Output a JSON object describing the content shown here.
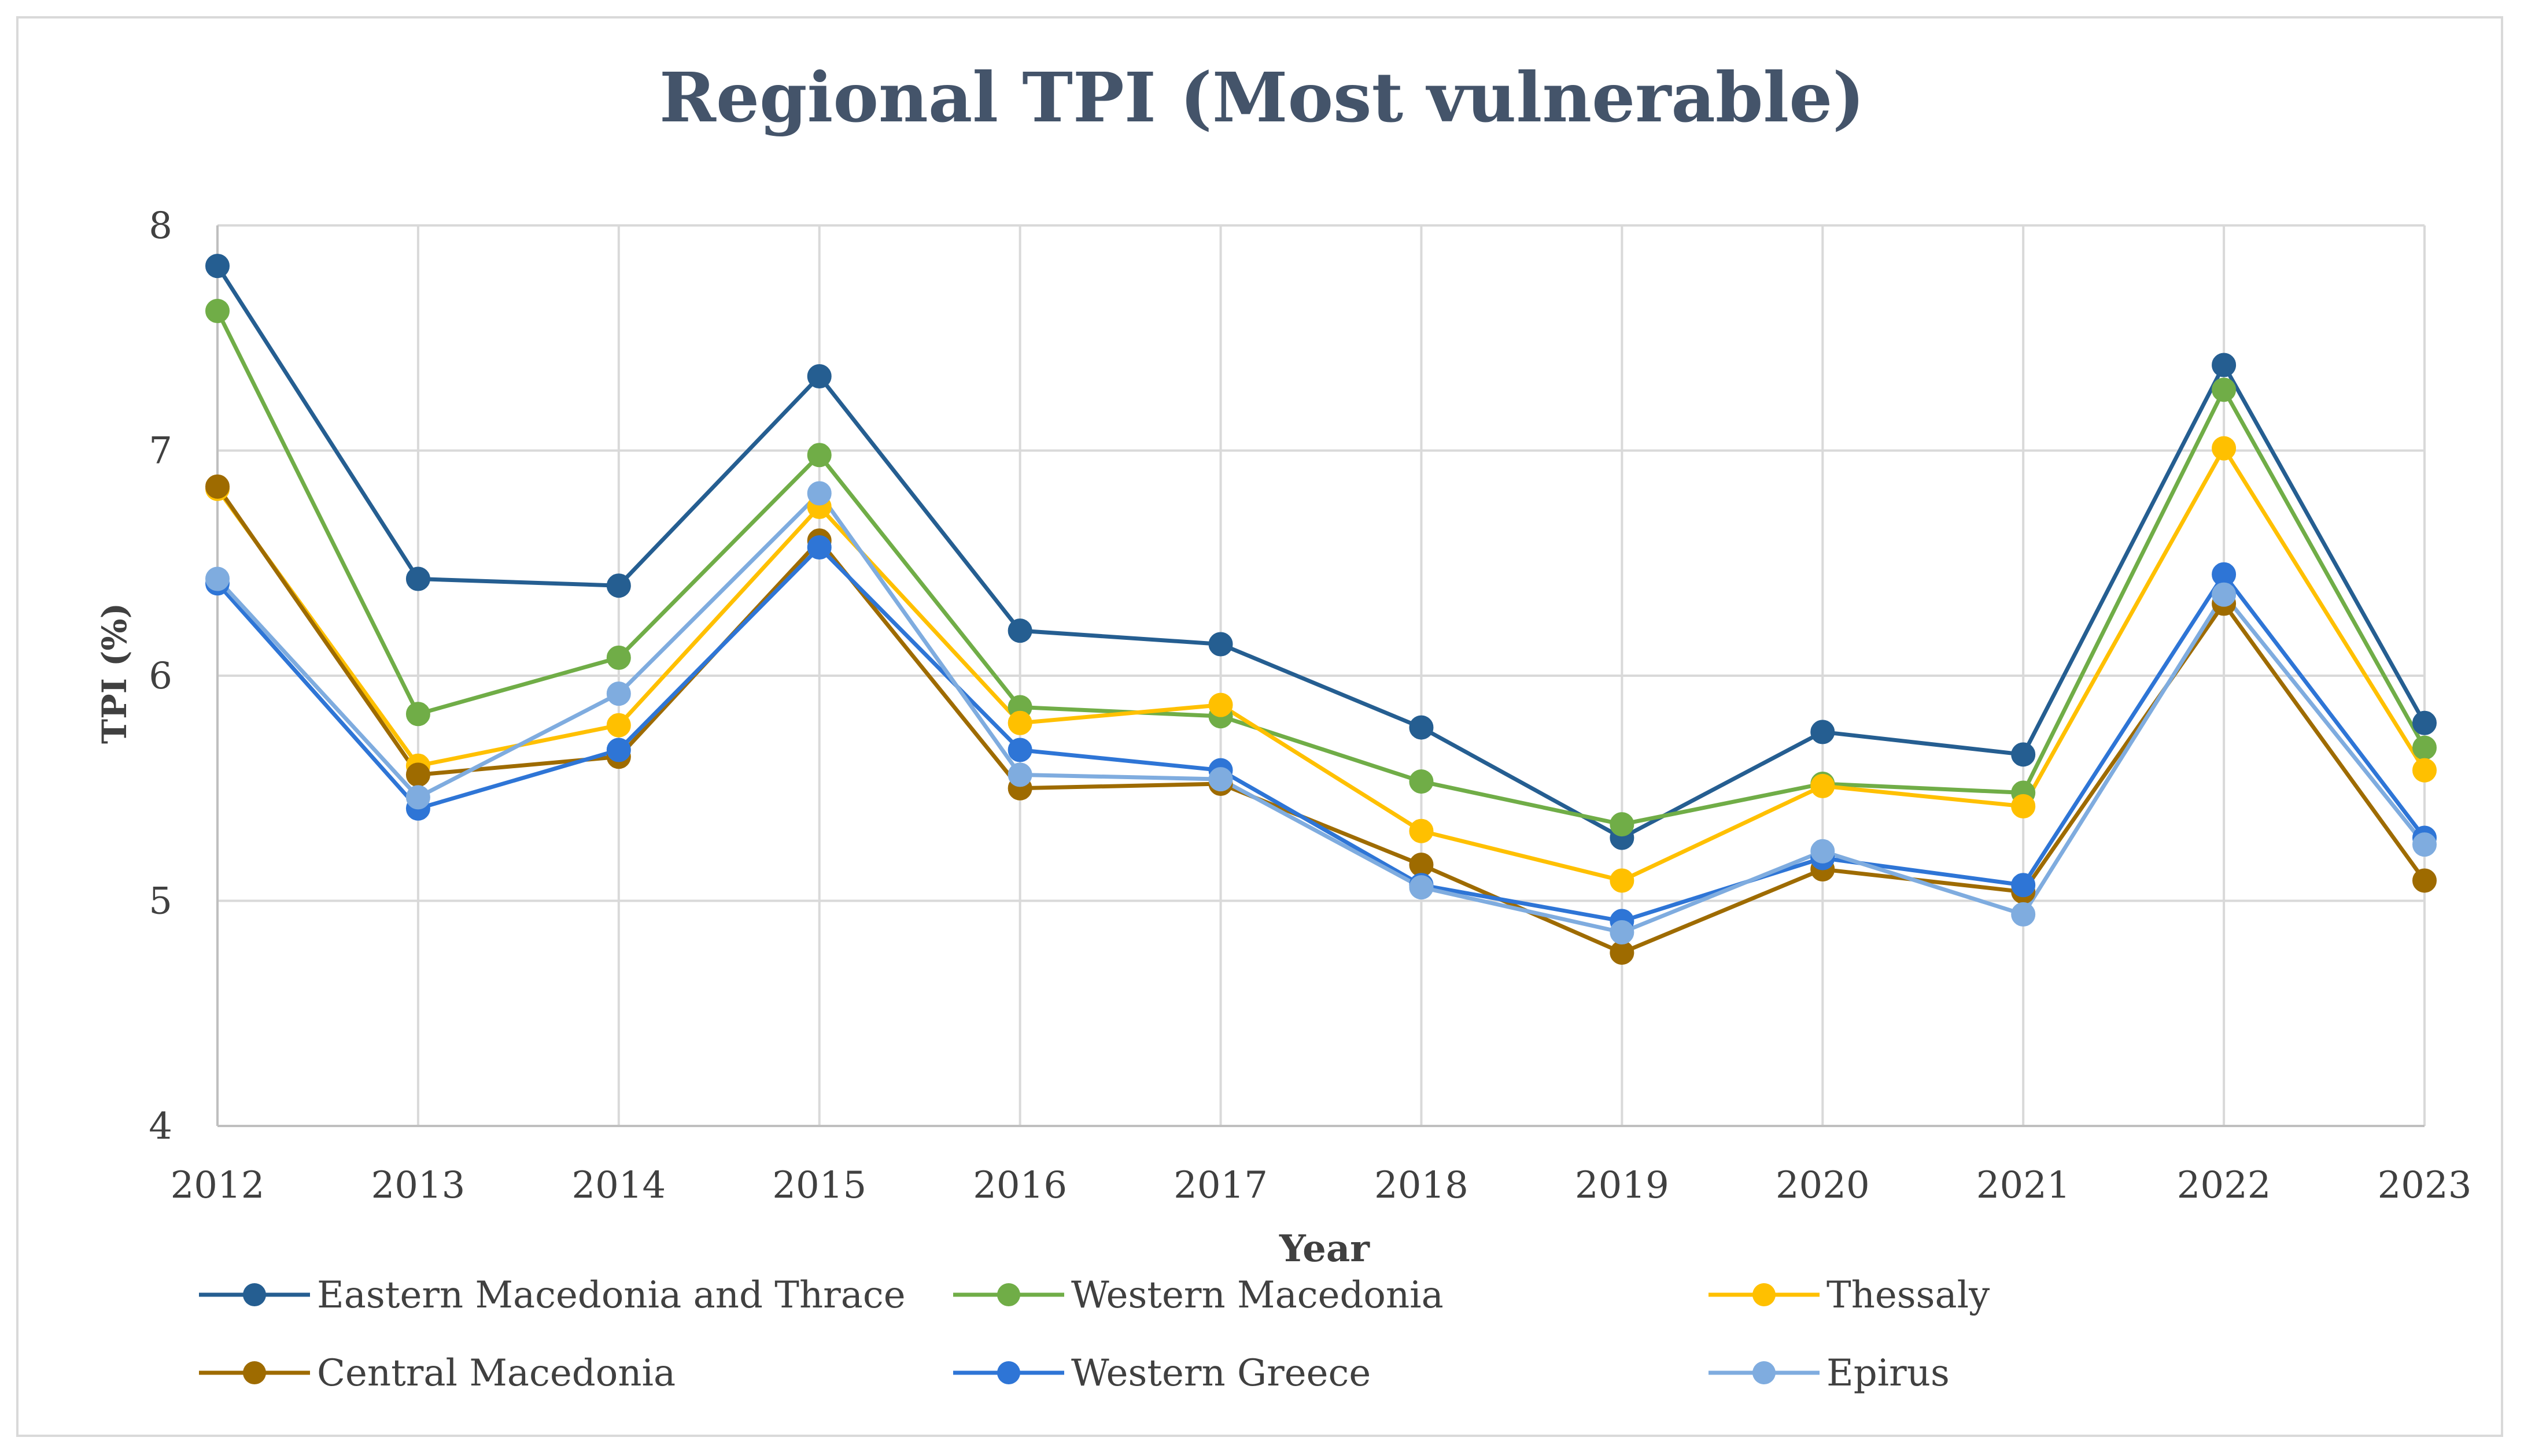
{
  "chart_data": {
    "type": "line",
    "title": "Regional TPI (Most vulnerable)",
    "xlabel": "Year",
    "ylabel": "TPI (%)",
    "x": [
      "2012",
      "2013",
      "2014",
      "2015",
      "2016",
      "2017",
      "2018",
      "2019",
      "2020",
      "2021",
      "2022",
      "2023"
    ],
    "ylim": [
      4,
      8
    ],
    "yticks": [
      "4",
      "5",
      "6",
      "7",
      "8"
    ],
    "grid": true,
    "legend_position": "bottom",
    "series": [
      {
        "name": "Eastern Macedonia and Thrace",
        "color": "#255e91",
        "values": [
          7.82,
          6.43,
          6.4,
          7.33,
          6.2,
          6.14,
          5.77,
          5.28,
          5.75,
          5.65,
          7.38,
          5.79
        ]
      },
      {
        "name": "Western Macedonia",
        "color": "#70ad47",
        "values": [
          7.62,
          5.83,
          6.08,
          6.98,
          5.86,
          5.82,
          5.53,
          5.34,
          5.52,
          5.48,
          7.27,
          5.68
        ]
      },
      {
        "name": "Thessaly",
        "color": "#ffc000",
        "values": [
          6.83,
          5.6,
          5.78,
          6.75,
          5.79,
          5.87,
          5.31,
          5.09,
          5.51,
          5.42,
          7.01,
          5.58
        ]
      },
      {
        "name": "Central Macedonia",
        "color": "#9e6b00",
        "values": [
          6.84,
          5.56,
          5.64,
          6.6,
          5.5,
          5.52,
          5.16,
          4.77,
          5.14,
          5.04,
          6.32,
          5.09
        ]
      },
      {
        "name": "Western Greece",
        "color": "#2e75d6",
        "values": [
          6.41,
          5.41,
          5.67,
          6.57,
          5.67,
          5.58,
          5.07,
          4.91,
          5.19,
          5.07,
          6.45,
          5.28
        ]
      },
      {
        "name": "Epirus",
        "color": "#7facdf",
        "values": [
          6.43,
          5.46,
          5.92,
          6.81,
          5.56,
          5.54,
          5.06,
          4.86,
          5.22,
          4.94,
          6.36,
          5.25
        ]
      }
    ]
  }
}
